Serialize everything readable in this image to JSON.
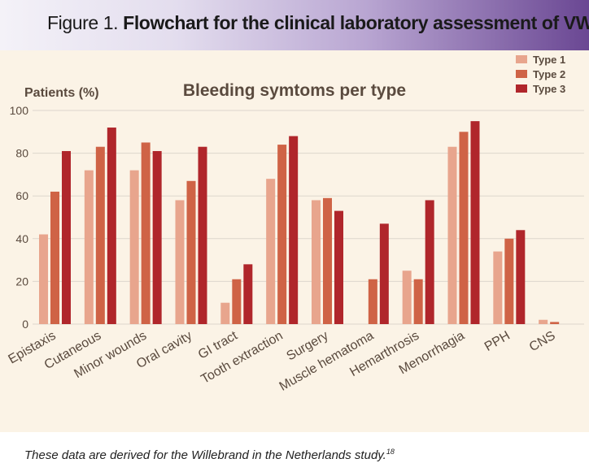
{
  "header": {
    "figure_label": "Figure 1.",
    "title": "Flowchart for the clinical laboratory assessment of VWD"
  },
  "footnote": {
    "text": "These data are derived for the Willebrand in the Netherlands study.",
    "reference": "18"
  },
  "colors": {
    "type1": "#e8a58d",
    "type2": "#cf6346",
    "type3": "#b0262b",
    "panel_background": "#fbf3e6",
    "gridline": "#ddd6cc",
    "label_text": "#5a4a3e"
  },
  "chart_data": {
    "type": "bar",
    "title": "Bleeding symtoms per type",
    "ylabel": "Patients (%)",
    "xlabel": "",
    "ylim": [
      0,
      100
    ],
    "yticks": [
      0,
      20,
      40,
      60,
      80,
      100
    ],
    "grid": true,
    "legend_position": "top-right",
    "categories": [
      "Epistaxis",
      "Cutaneous",
      "Minor wounds",
      "Oral cavity",
      "GI tract",
      "Tooth extraction",
      "Surgery",
      "Muscle hematoma",
      "Hemarthrosis",
      "Menorrhagia",
      "PPH",
      "CNS"
    ],
    "series": [
      {
        "name": "Type 1",
        "color": "#e8a58d",
        "values": [
          42,
          72,
          72,
          58,
          10,
          68,
          58,
          0,
          25,
          83,
          34,
          2
        ]
      },
      {
        "name": "Type 2",
        "color": "#cf6346",
        "values": [
          62,
          83,
          85,
          67,
          21,
          84,
          59,
          21,
          21,
          90,
          40,
          1
        ]
      },
      {
        "name": "Type 3",
        "color": "#b0262b",
        "values": [
          81,
          92,
          81,
          83,
          28,
          88,
          53,
          47,
          58,
          95,
          44,
          0
        ]
      }
    ]
  }
}
